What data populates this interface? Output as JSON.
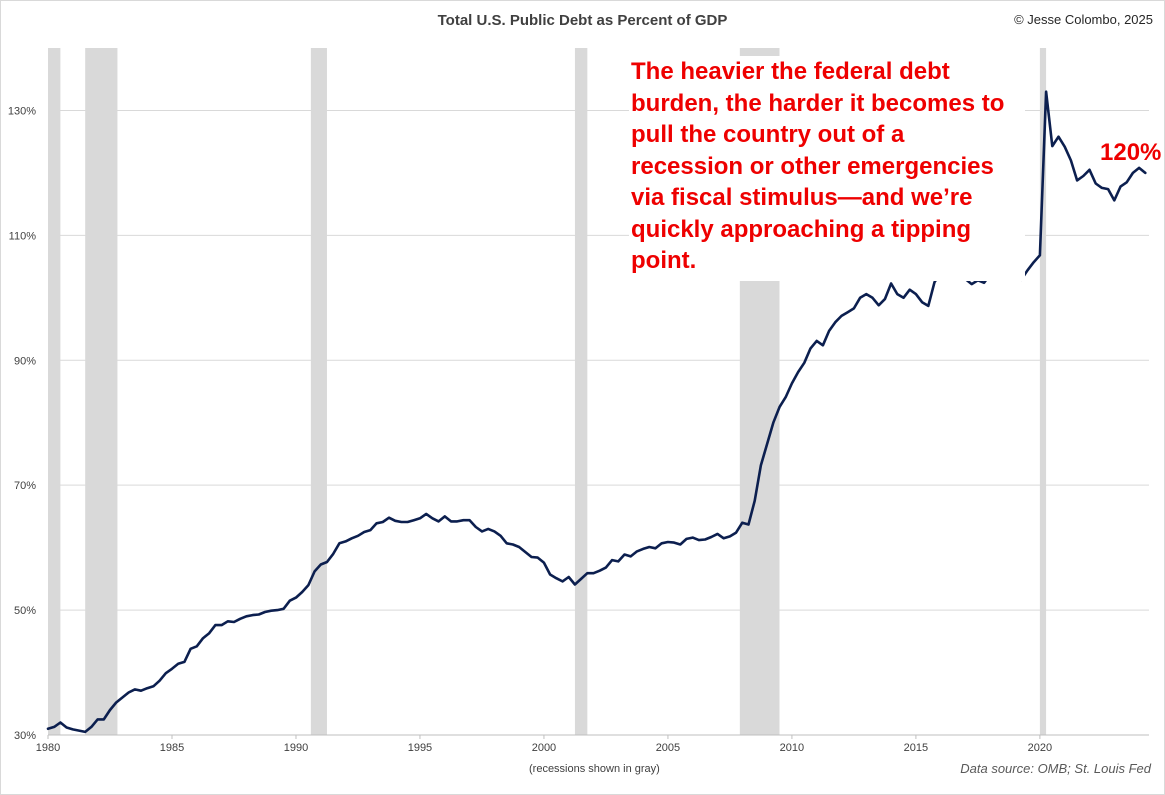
{
  "header": {
    "title": "Total U.S. Public Debt as Percent of GDP",
    "credit": "© Jesse Colombo, 2025"
  },
  "footer": {
    "recession_note": "(recessions shown in gray)",
    "source": "Data source: OMB; St. Louis Fed"
  },
  "annotation": {
    "text": "The heavier the federal debt burden, the harder it becomes to pull the country out of a recession or other emergencies via fiscal stimulus—and we’re quickly approaching a tipping point.",
    "end_label": "120%"
  },
  "colors": {
    "line": "#0c1f4f",
    "recession_band": "#d9d9d9",
    "annotation": "#ee0000",
    "gridline": "#d9d9d9"
  },
  "chart_data": {
    "type": "line",
    "title": "Total U.S. Public Debt as Percent of GDP",
    "xlabel": "",
    "ylabel": "",
    "xlim": [
      1980,
      2024.4
    ],
    "ylim": [
      30,
      140
    ],
    "grid": true,
    "x_ticks": [
      1980,
      1985,
      1990,
      1995,
      2000,
      2005,
      2010,
      2015,
      2020
    ],
    "x_tick_labels": [
      "1980",
      "1985",
      "1990",
      "1995",
      "2000",
      "2005",
      "2010",
      "2015",
      "2020"
    ],
    "y_ticks": [
      30,
      50,
      70,
      90,
      110,
      130
    ],
    "y_tick_labels": [
      "30%",
      "50%",
      "70%",
      "90%",
      "110%",
      "130%"
    ],
    "recessions": [
      [
        1980.0,
        1980.5
      ],
      [
        1981.5,
        1982.8
      ],
      [
        1990.6,
        1991.25
      ],
      [
        2001.25,
        2001.75
      ],
      [
        2007.9,
        2009.5
      ],
      [
        2020.0,
        2020.25
      ]
    ],
    "series": [
      {
        "values": [
          [
            1980.0,
            31.0
          ],
          [
            1980.25,
            31.3
          ],
          [
            1980.5,
            32.0
          ],
          [
            1980.75,
            31.2
          ],
          [
            1981.0,
            30.9
          ],
          [
            1981.25,
            30.7
          ],
          [
            1981.5,
            30.5
          ],
          [
            1981.75,
            31.3
          ],
          [
            1982.0,
            32.5
          ],
          [
            1982.25,
            32.5
          ],
          [
            1982.5,
            34.0
          ],
          [
            1982.75,
            35.2
          ],
          [
            1983.0,
            36.0
          ],
          [
            1983.25,
            36.8
          ],
          [
            1983.5,
            37.3
          ],
          [
            1983.75,
            37.1
          ],
          [
            1984.0,
            37.5
          ],
          [
            1984.25,
            37.8
          ],
          [
            1984.5,
            38.7
          ],
          [
            1984.75,
            39.9
          ],
          [
            1985.0,
            40.6
          ],
          [
            1985.25,
            41.4
          ],
          [
            1985.5,
            41.7
          ],
          [
            1985.75,
            43.8
          ],
          [
            1986.0,
            44.2
          ],
          [
            1986.25,
            45.5
          ],
          [
            1986.5,
            46.3
          ],
          [
            1986.75,
            47.6
          ],
          [
            1987.0,
            47.6
          ],
          [
            1987.25,
            48.2
          ],
          [
            1987.5,
            48.1
          ],
          [
            1987.75,
            48.6
          ],
          [
            1988.0,
            49.0
          ],
          [
            1988.25,
            49.2
          ],
          [
            1988.5,
            49.3
          ],
          [
            1988.75,
            49.7
          ],
          [
            1989.0,
            49.9
          ],
          [
            1989.25,
            50.0
          ],
          [
            1989.5,
            50.2
          ],
          [
            1989.75,
            51.5
          ],
          [
            1990.0,
            52.0
          ],
          [
            1990.25,
            52.9
          ],
          [
            1990.5,
            54.0
          ],
          [
            1990.75,
            56.2
          ],
          [
            1991.0,
            57.3
          ],
          [
            1991.25,
            57.7
          ],
          [
            1991.5,
            59.0
          ],
          [
            1991.75,
            60.7
          ],
          [
            1992.0,
            61.0
          ],
          [
            1992.25,
            61.5
          ],
          [
            1992.5,
            61.9
          ],
          [
            1992.75,
            62.5
          ],
          [
            1993.0,
            62.8
          ],
          [
            1993.25,
            63.9
          ],
          [
            1993.5,
            64.1
          ],
          [
            1993.75,
            64.8
          ],
          [
            1994.0,
            64.3
          ],
          [
            1994.25,
            64.1
          ],
          [
            1994.5,
            64.1
          ],
          [
            1994.75,
            64.4
          ],
          [
            1995.0,
            64.7
          ],
          [
            1995.25,
            65.4
          ],
          [
            1995.5,
            64.7
          ],
          [
            1995.75,
            64.2
          ],
          [
            1996.0,
            65.0
          ],
          [
            1996.25,
            64.2
          ],
          [
            1996.5,
            64.2
          ],
          [
            1996.75,
            64.4
          ],
          [
            1997.0,
            64.4
          ],
          [
            1997.25,
            63.3
          ],
          [
            1997.5,
            62.6
          ],
          [
            1997.75,
            63.0
          ],
          [
            1998.0,
            62.6
          ],
          [
            1998.25,
            61.9
          ],
          [
            1998.5,
            60.7
          ],
          [
            1998.75,
            60.5
          ],
          [
            1999.0,
            60.1
          ],
          [
            1999.25,
            59.3
          ],
          [
            1999.5,
            58.5
          ],
          [
            1999.75,
            58.4
          ],
          [
            2000.0,
            57.6
          ],
          [
            2000.25,
            55.7
          ],
          [
            2000.5,
            55.1
          ],
          [
            2000.75,
            54.6
          ],
          [
            2001.0,
            55.3
          ],
          [
            2001.25,
            54.1
          ],
          [
            2001.5,
            55.0
          ],
          [
            2001.75,
            55.9
          ],
          [
            2002.0,
            55.9
          ],
          [
            2002.25,
            56.3
          ],
          [
            2002.5,
            56.8
          ],
          [
            2002.75,
            58.0
          ],
          [
            2003.0,
            57.8
          ],
          [
            2003.25,
            58.9
          ],
          [
            2003.5,
            58.6
          ],
          [
            2003.75,
            59.4
          ],
          [
            2004.0,
            59.8
          ],
          [
            2004.25,
            60.1
          ],
          [
            2004.5,
            59.9
          ],
          [
            2004.75,
            60.7
          ],
          [
            2005.0,
            60.9
          ],
          [
            2005.25,
            60.8
          ],
          [
            2005.5,
            60.5
          ],
          [
            2005.75,
            61.4
          ],
          [
            2006.0,
            61.6
          ],
          [
            2006.25,
            61.2
          ],
          [
            2006.5,
            61.3
          ],
          [
            2006.75,
            61.7
          ],
          [
            2007.0,
            62.2
          ],
          [
            2007.25,
            61.5
          ],
          [
            2007.5,
            61.8
          ],
          [
            2007.75,
            62.4
          ],
          [
            2008.0,
            64.0
          ],
          [
            2008.25,
            63.7
          ],
          [
            2008.5,
            67.5
          ],
          [
            2008.75,
            73.2
          ],
          [
            2009.0,
            76.6
          ],
          [
            2009.25,
            80.0
          ],
          [
            2009.5,
            82.5
          ],
          [
            2009.75,
            84.1
          ],
          [
            2010.0,
            86.3
          ],
          [
            2010.25,
            88.1
          ],
          [
            2010.5,
            89.6
          ],
          [
            2010.75,
            91.9
          ],
          [
            2011.0,
            93.1
          ],
          [
            2011.25,
            92.4
          ],
          [
            2011.5,
            94.7
          ],
          [
            2011.75,
            96.1
          ],
          [
            2012.0,
            97.1
          ],
          [
            2012.25,
            97.7
          ],
          [
            2012.5,
            98.3
          ],
          [
            2012.75,
            100.0
          ],
          [
            2013.0,
            100.6
          ],
          [
            2013.25,
            100.0
          ],
          [
            2013.5,
            98.8
          ],
          [
            2013.75,
            99.8
          ],
          [
            2014.0,
            102.3
          ],
          [
            2014.25,
            100.6
          ],
          [
            2014.5,
            100.0
          ],
          [
            2014.75,
            101.3
          ],
          [
            2015.0,
            100.6
          ],
          [
            2015.25,
            99.3
          ],
          [
            2015.5,
            98.7
          ],
          [
            2015.75,
            102.5
          ],
          [
            2016.0,
            104.0
          ],
          [
            2016.25,
            103.6
          ],
          [
            2016.5,
            103.6
          ],
          [
            2016.75,
            104.6
          ],
          [
            2017.0,
            103.0
          ],
          [
            2017.25,
            102.2
          ],
          [
            2017.5,
            102.8
          ],
          [
            2017.75,
            102.4
          ],
          [
            2018.0,
            103.8
          ],
          [
            2018.25,
            103.0
          ],
          [
            2018.5,
            103.5
          ],
          [
            2018.75,
            105.0
          ],
          [
            2019.0,
            104.4
          ],
          [
            2019.25,
            102.9
          ],
          [
            2019.5,
            104.4
          ],
          [
            2019.75,
            105.7
          ],
          [
            2020.0,
            106.8
          ],
          [
            2020.25,
            133.0
          ],
          [
            2020.5,
            124.3
          ],
          [
            2020.75,
            125.8
          ],
          [
            2021.0,
            124.2
          ],
          [
            2021.25,
            122.0
          ],
          [
            2021.5,
            118.8
          ],
          [
            2021.75,
            119.5
          ],
          [
            2022.0,
            120.5
          ],
          [
            2022.25,
            118.3
          ],
          [
            2022.5,
            117.6
          ],
          [
            2022.75,
            117.4
          ],
          [
            2023.0,
            115.6
          ],
          [
            2023.25,
            117.8
          ],
          [
            2023.5,
            118.5
          ],
          [
            2023.75,
            120.0
          ],
          [
            2024.0,
            120.8
          ],
          [
            2024.25,
            120.0
          ]
        ]
      }
    ]
  }
}
